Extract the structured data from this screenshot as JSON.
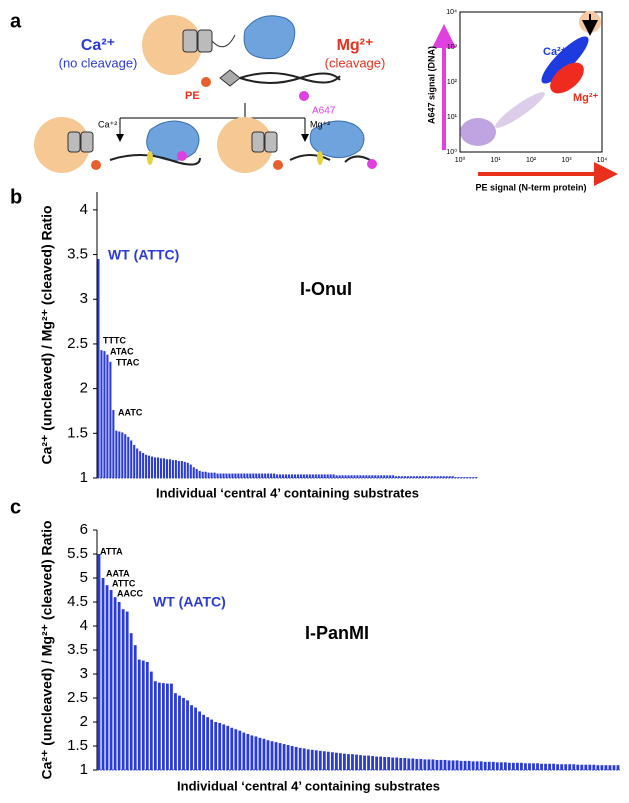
{
  "panel_labels": [
    "a",
    "b",
    "c"
  ],
  "diagram": {
    "ca_label": "Ca²⁺",
    "ca_note": "(no cleavage)",
    "mg_label": "Mg²⁺",
    "mg_note": "(cleavage)",
    "pe_label": "PE",
    "a647_label": "A647",
    "ca_branch": "Ca⁺²",
    "mg_branch": "Mg⁺²",
    "scatter": {
      "ylabel": "A647 signal (DNA)",
      "xlabel": "PE signal (N-term protein)",
      "xticks": [
        "10⁰",
        "10¹",
        "10²",
        "10³",
        "10⁴"
      ],
      "yticks": [
        "10⁰",
        "10¹",
        "10²",
        "10³",
        "10⁴"
      ],
      "ca_cloud": "Ca²⁺",
      "mg_cloud": "Mg²⁺"
    }
  },
  "chart_data": [
    {
      "type": "bar",
      "title": "I-OnuI",
      "xlabel": "Individual ‘central 4’ containing substrates",
      "ylabel": "Ca²⁺ (uncleaved) / Mg²⁺ (cleaved) Ratio",
      "color": "#2b3bd6",
      "ylim": [
        1,
        4.2
      ],
      "yticks": [
        1,
        1.5,
        2,
        2.5,
        3,
        3.5,
        4
      ],
      "annotations": [
        {
          "text": "WT (ATTC)",
          "color": "#2b3bd6"
        },
        {
          "text": "TTTC",
          "color": "#000000"
        },
        {
          "text": "ATAC",
          "color": "#000000"
        },
        {
          "text": "TTAC",
          "color": "#000000"
        },
        {
          "text": "AATC",
          "color": "#000000"
        }
      ],
      "values": [
        3.45,
        2.43,
        2.42,
        2.38,
        2.3,
        1.76,
        1.53,
        1.52,
        1.51,
        1.49,
        1.46,
        1.42,
        1.37,
        1.33,
        1.3,
        1.28,
        1.26,
        1.25,
        1.24,
        1.23,
        1.23,
        1.22,
        1.22,
        1.21,
        1.21,
        1.2,
        1.2,
        1.19,
        1.19,
        1.18,
        1.17,
        1.15,
        1.12,
        1.1,
        1.08,
        1.07,
        1.07,
        1.06,
        1.06,
        1.06,
        1.05,
        1.05,
        1.05,
        1.05,
        1.05,
        1.05,
        1.05,
        1.05,
        1.05,
        1.05,
        1.05,
        1.05,
        1.05,
        1.05,
        1.05,
        1.05,
        1.05,
        1.05,
        1.05,
        1.05,
        1.04,
        1.04,
        1.04,
        1.04,
        1.04,
        1.04,
        1.04,
        1.04,
        1.04,
        1.04,
        1.04,
        1.04,
        1.04,
        1.04,
        1.04,
        1.04,
        1.04,
        1.04,
        1.04,
        1.04,
        1.03,
        1.03,
        1.03,
        1.03,
        1.03,
        1.03,
        1.03,
        1.03,
        1.03,
        1.03,
        1.03,
        1.03,
        1.03,
        1.03,
        1.03,
        1.03,
        1.03,
        1.03,
        1.03,
        1.03,
        1.02,
        1.02,
        1.02,
        1.02,
        1.02,
        1.02,
        1.02,
        1.02,
        1.02,
        1.02,
        1.02,
        1.02,
        1.02,
        1.02,
        1.02,
        1.02,
        1.02,
        1.02,
        1.02,
        1.02,
        1.01,
        1.01,
        1.01,
        1.01,
        1.01,
        1.01,
        1.01,
        1.01
      ]
    },
    {
      "type": "bar",
      "title": "I-PanMI",
      "xlabel": "Individual ‘central 4’ containing substrates",
      "ylabel": "Ca²⁺ (uncleaved) / Mg²⁺ (cleaved) Ratio",
      "color": "#2b3bd6",
      "ylim": [
        1,
        6
      ],
      "yticks": [
        1,
        1.5,
        2,
        2.5,
        3,
        3.5,
        4,
        4.5,
        5,
        5.5,
        6
      ],
      "annotations": [
        {
          "text": "ATTA",
          "color": "#000000"
        },
        {
          "text": "AATA",
          "color": "#000000"
        },
        {
          "text": "ATTC",
          "color": "#000000"
        },
        {
          "text": "AACC",
          "color": "#000000"
        },
        {
          "text": "WT (AATC)",
          "color": "#2b3bd6"
        }
      ],
      "values": [
        5.5,
        5.0,
        4.85,
        4.75,
        4.6,
        4.5,
        4.35,
        4.3,
        3.85,
        3.6,
        3.3,
        3.28,
        3.25,
        3.05,
        2.85,
        2.82,
        2.81,
        2.8,
        2.8,
        2.6,
        2.55,
        2.5,
        2.45,
        2.35,
        2.3,
        2.22,
        2.15,
        2.1,
        2.05,
        2.0,
        1.98,
        1.95,
        1.92,
        1.88,
        1.85,
        1.82,
        1.78,
        1.75,
        1.72,
        1.7,
        1.67,
        1.65,
        1.62,
        1.6,
        1.58,
        1.56,
        1.54,
        1.52,
        1.5,
        1.48,
        1.46,
        1.45,
        1.43,
        1.42,
        1.41,
        1.4,
        1.39,
        1.38,
        1.37,
        1.36,
        1.35,
        1.34,
        1.33,
        1.33,
        1.32,
        1.31,
        1.3,
        1.3,
        1.29,
        1.28,
        1.28,
        1.27,
        1.27,
        1.26,
        1.26,
        1.25,
        1.25,
        1.24,
        1.24,
        1.23,
        1.23,
        1.22,
        1.22,
        1.22,
        1.21,
        1.21,
        1.21,
        1.2,
        1.2,
        1.2,
        1.19,
        1.19,
        1.19,
        1.18,
        1.18,
        1.18,
        1.17,
        1.17,
        1.17,
        1.16,
        1.16,
        1.16,
        1.15,
        1.15,
        1.15,
        1.15,
        1.14,
        1.14,
        1.14,
        1.14,
        1.13,
        1.13,
        1.13,
        1.13,
        1.12,
        1.12,
        1.12,
        1.12,
        1.12,
        1.11,
        1.11,
        1.11,
        1.11,
        1.11,
        1.1,
        1.1,
        1.1,
        1.1,
        1.1,
        1.1
      ]
    }
  ]
}
